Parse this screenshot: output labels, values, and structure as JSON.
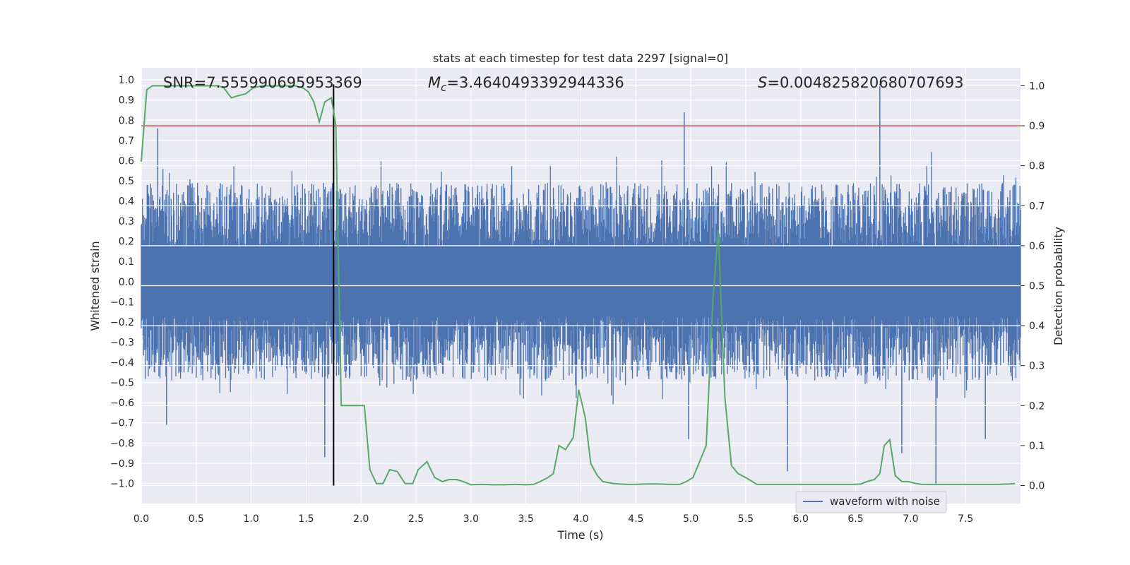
{
  "chart_data": {
    "type": "line",
    "title": "stats at each timestep for test data 2297 [signal=0]",
    "xlabel": "Time (s)",
    "ylabel_left": "Whitened strain",
    "ylabel_right": "Detection probability",
    "xlim": [
      0.0,
      8.0
    ],
    "ylim_left": [
      -1.1,
      1.06
    ],
    "ylim_right": [
      -0.045,
      1.045
    ],
    "x_ticks": [
      "0.0",
      "0.5",
      "1.0",
      "1.5",
      "2.0",
      "2.5",
      "3.0",
      "3.5",
      "4.0",
      "4.5",
      "5.0",
      "5.5",
      "6.0",
      "6.5",
      "7.0",
      "7.5"
    ],
    "y_ticks_left": [
      "1.0",
      "0.9",
      "0.8",
      "0.7",
      "0.6",
      "0.5",
      "0.4",
      "0.3",
      "0.2",
      "0.1",
      "0.0",
      "-0.1",
      "-0.2",
      "-0.3",
      "-0.4",
      "-0.5",
      "-0.6",
      "-0.7",
      "-0.8",
      "-0.9",
      "-1.0"
    ],
    "y_ticks_right": [
      "1.0",
      "0.9",
      "0.8",
      "0.7",
      "0.6",
      "0.5",
      "0.4",
      "0.3",
      "0.2",
      "0.1",
      "0.0"
    ],
    "annotations": {
      "snr": "SNR=7.555990695953369",
      "mc_symbol": "M",
      "mc_sub": "c",
      "mc_value": "=3.4640493392944336",
      "s_symbol": "S",
      "s_value": "=0.004825820680707693"
    },
    "threshold": {
      "value": 0.9,
      "axis": "right",
      "color": "#c44e52"
    },
    "event_line": {
      "x": 1.75,
      "color": "#000000"
    },
    "waveform": {
      "name": "waveform with noise",
      "color": "#4c72b0",
      "typical_envelope_upper": 0.55,
      "typical_envelope_lower": -0.55,
      "peaks": [
        {
          "x": 0.15,
          "y": 0.76
        },
        {
          "x": 0.23,
          "y": -0.71
        },
        {
          "x": 1.67,
          "y": -0.87
        },
        {
          "x": 4.94,
          "y": 0.84
        },
        {
          "x": 4.98,
          "y": -0.78
        },
        {
          "x": 5.88,
          "y": -0.94
        },
        {
          "x": 6.72,
          "y": 0.98
        },
        {
          "x": 6.92,
          "y": -0.85
        },
        {
          "x": 7.23,
          "y": -1.0
        },
        {
          "x": 7.68,
          "y": -0.78
        }
      ]
    },
    "detection_probability": {
      "color": "#55a868",
      "axis": "right",
      "x": [
        0.0,
        0.05,
        0.1,
        0.2,
        0.3,
        0.4,
        0.5,
        0.6,
        0.7,
        0.75,
        0.82,
        0.88,
        0.95,
        1.02,
        1.1,
        1.2,
        1.3,
        1.4,
        1.47,
        1.52,
        1.57,
        1.62,
        1.67,
        1.73,
        1.77,
        1.82,
        1.87,
        1.93,
        1.98,
        2.03,
        2.08,
        2.14,
        2.2,
        2.26,
        2.33,
        2.4,
        2.47,
        2.52,
        2.6,
        2.67,
        2.74,
        2.8,
        2.87,
        2.93,
        3.0,
        3.1,
        3.2,
        3.3,
        3.4,
        3.5,
        3.57,
        3.63,
        3.7,
        3.75,
        3.8,
        3.86,
        3.93,
        3.98,
        4.04,
        4.09,
        4.15,
        4.2,
        4.3,
        4.4,
        4.5,
        4.6,
        4.7,
        4.8,
        4.9,
        4.96,
        5.02,
        5.08,
        5.14,
        5.2,
        5.25,
        5.31,
        5.37,
        5.43,
        5.5,
        5.56,
        5.6,
        5.7,
        5.8,
        5.9,
        6.0,
        6.1,
        6.2,
        6.3,
        6.4,
        6.5,
        6.55,
        6.6,
        6.67,
        6.72,
        6.76,
        6.81,
        6.86,
        6.92,
        6.98,
        7.05,
        7.1,
        7.2,
        7.3,
        7.4,
        7.5,
        7.6,
        7.7,
        7.8,
        7.9,
        7.95
      ],
      "y": [
        0.81,
        0.99,
        1.0,
        1.0,
        1.0,
        1.0,
        1.0,
        1.0,
        1.0,
        0.995,
        0.97,
        0.975,
        0.98,
        0.995,
        1.0,
        1.0,
        1.0,
        1.0,
        0.995,
        0.985,
        0.96,
        0.91,
        0.96,
        0.97,
        0.9,
        0.2,
        0.2,
        0.2,
        0.2,
        0.2,
        0.04,
        0.005,
        0.005,
        0.04,
        0.035,
        0.005,
        0.005,
        0.04,
        0.06,
        0.02,
        0.01,
        0.015,
        0.015,
        0.01,
        0.002,
        0.003,
        0.002,
        0.002,
        0.003,
        0.002,
        0.003,
        0.01,
        0.02,
        0.03,
        0.1,
        0.09,
        0.12,
        0.24,
        0.17,
        0.055,
        0.025,
        0.01,
        0.005,
        0.003,
        0.003,
        0.004,
        0.004,
        0.003,
        0.003,
        0.01,
        0.02,
        0.06,
        0.1,
        0.46,
        0.64,
        0.22,
        0.05,
        0.03,
        0.02,
        0.01,
        0.003,
        0.003,
        0.003,
        0.003,
        0.003,
        0.003,
        0.003,
        0.003,
        0.003,
        0.003,
        0.004,
        0.01,
        0.015,
        0.03,
        0.1,
        0.115,
        0.025,
        0.01,
        0.01,
        0.005,
        0.003,
        0.003,
        0.003,
        0.003,
        0.003,
        0.003,
        0.003,
        0.003,
        0.004,
        0.005
      ]
    }
  }
}
